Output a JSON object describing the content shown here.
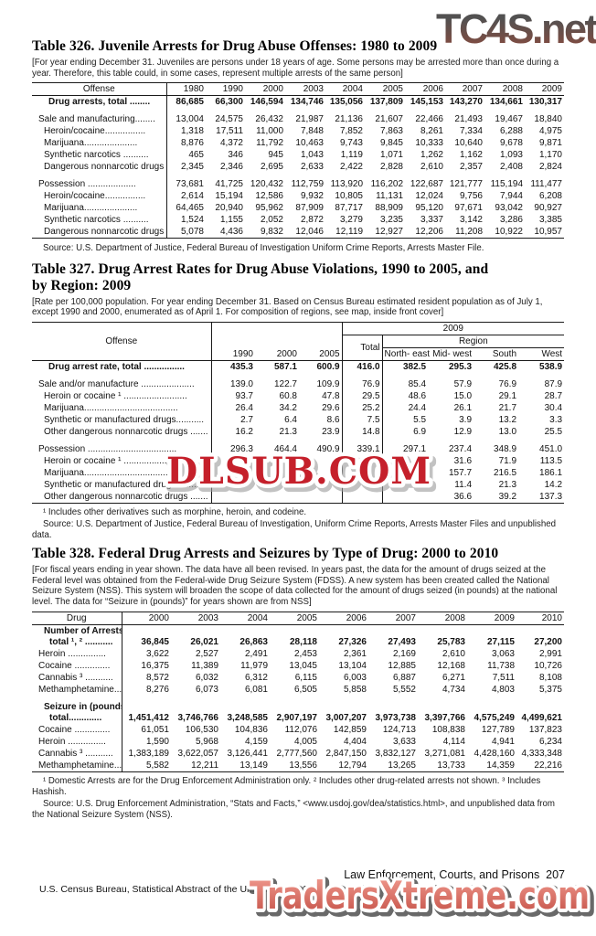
{
  "watermarks": {
    "top_right": "TC4S.net",
    "middle": "DLSUB.COM",
    "bottom": "TradersXtreme.com",
    "colors": {
      "middle_red": "#c5202b",
      "bottom_salmon_top": "#ec9388",
      "bottom_salmon_bottom": "#c8564c",
      "top_gray": "#4d4c4c",
      "top_maroon": "#84473a"
    }
  },
  "footer": {
    "right": "Law Enforcement, Courts, and Prisons  207",
    "left": "U.S. Census Bureau, Statistical Abstract of the United States: 2012"
  },
  "table326": {
    "title": "Table 326. Juvenile Arrests for Drug Abuse Offenses: 1980 to 2009",
    "note": "[For year ending December 31. Juveniles are persons under 18 years of age. Some persons may be arrested more than once during a year. Therefore, this table could, in some cases, represent multiple arrests of the same person]",
    "col_header": "Offense",
    "years": [
      "1980",
      "1990",
      "2000",
      "2003",
      "2004",
      "2005",
      "2006",
      "2007",
      "2008",
      "2009"
    ],
    "rows": [
      {
        "label": "Drug arrests, total ........",
        "bold": true,
        "indent": 2,
        "values": [
          "86,685",
          "66,300",
          "146,594",
          "134,746",
          "135,056",
          "137,809",
          "145,153",
          "143,270",
          "134,661",
          "130,317"
        ]
      },
      {
        "label": "Sale and manufacturing........",
        "indent": 0,
        "gap_before": true,
        "values": [
          "13,004",
          "24,575",
          "26,432",
          "21,987",
          "21,136",
          "21,607",
          "22,466",
          "21,493",
          "19,467",
          "18,840"
        ]
      },
      {
        "label": "Heroin/cocaine................",
        "indent": 1,
        "values": [
          "1,318",
          "17,511",
          "11,000",
          "7,848",
          "7,852",
          "7,863",
          "8,261",
          "7,334",
          "6,288",
          "4,975"
        ]
      },
      {
        "label": "Marijuana.....................",
        "indent": 1,
        "values": [
          "8,876",
          "4,372",
          "11,792",
          "10,463",
          "9,743",
          "9,845",
          "10,333",
          "10,640",
          "9,678",
          "9,871"
        ]
      },
      {
        "label": "Synthetic narcotics ..........",
        "indent": 1,
        "values": [
          "465",
          "346",
          "945",
          "1,043",
          "1,119",
          "1,071",
          "1,262",
          "1,162",
          "1,093",
          "1,170"
        ]
      },
      {
        "label": "Dangerous nonnarcotic drugs .",
        "indent": 1,
        "values": [
          "2,345",
          "2,346",
          "2,695",
          "2,633",
          "2,422",
          "2,828",
          "2,610",
          "2,357",
          "2,408",
          "2,824"
        ]
      },
      {
        "label": "Possession ...................",
        "indent": 0,
        "gap_before": true,
        "values": [
          "73,681",
          "41,725",
          "120,432",
          "112,759",
          "113,920",
          "116,202",
          "122,687",
          "121,777",
          "115,194",
          "111,477"
        ]
      },
      {
        "label": "Heroin/cocaine................",
        "indent": 1,
        "values": [
          "2,614",
          "15,194",
          "12,586",
          "9,932",
          "10,805",
          "11,131",
          "12,024",
          "9,756",
          "7,944",
          "6,208"
        ]
      },
      {
        "label": "Marijuana.....................",
        "indent": 1,
        "values": [
          "64,465",
          "20,940",
          "95,962",
          "87,909",
          "87,717",
          "88,909",
          "95,120",
          "97,671",
          "93,042",
          "90,927"
        ]
      },
      {
        "label": "Synthetic narcotics ..........",
        "indent": 1,
        "values": [
          "1,524",
          "1,155",
          "2,052",
          "2,872",
          "3,279",
          "3,235",
          "3,337",
          "3,142",
          "3,286",
          "3,385"
        ]
      },
      {
        "label": "Dangerous nonnarcotic drugs .",
        "indent": 1,
        "values": [
          "5,078",
          "4,436",
          "9,832",
          "12,046",
          "12,119",
          "12,927",
          "12,206",
          "11,208",
          "10,922",
          "10,957"
        ]
      }
    ],
    "source": "Source: U.S. Department of Justice, Federal Bureau of Investigation Uniform Crime Reports, Arrests Master File."
  },
  "table327": {
    "title_line1": "Table 327. Drug Arrest Rates for Drug Abuse Violations, 1990 to 2005, and",
    "title_line2": "by Region: 2009",
    "note": "[Rate per 100,000 population. For year ending December 31. Based on Census Bureau estimated resident population as of July 1, except 1990 and 2000, enumerated as of April 1. For composition of regions, see map, inside front cover]",
    "col_header": "Offense",
    "header_2009": "2009",
    "header_region": "Region",
    "header_total": "Total",
    "years": [
      "1990",
      "2000",
      "2005"
    ],
    "regions": [
      "North-\neast",
      "Mid-\nwest",
      "South",
      "West"
    ],
    "rows": [
      {
        "label": "Drug arrest rate, total ................",
        "bold": true,
        "indent": 2,
        "values": [
          "435.3",
          "587.1",
          "600.9",
          "416.0",
          "382.5",
          "295.3",
          "425.8",
          "538.9"
        ]
      },
      {
        "label": "Sale and/or manufacture .....................",
        "indent": 0,
        "gap_before": true,
        "values": [
          "139.0",
          "122.7",
          "109.9",
          "76.9",
          "85.4",
          "57.9",
          "76.9",
          "87.9"
        ]
      },
      {
        "label": "Heroin or cocaine ¹ .........................",
        "indent": 1,
        "values": [
          "93.7",
          "60.8",
          "47.8",
          "29.5",
          "48.6",
          "15.0",
          "29.1",
          "28.7"
        ]
      },
      {
        "label": "Marijuana.....................................",
        "indent": 1,
        "values": [
          "26.4",
          "34.2",
          "29.6",
          "25.2",
          "24.4",
          "26.1",
          "21.7",
          "30.4"
        ]
      },
      {
        "label": "Synthetic or manufactured drugs...........",
        "indent": 1,
        "values": [
          "2.7",
          "6.4",
          "8.6",
          "7.5",
          "5.5",
          "3.9",
          "13.2",
          "3.3"
        ]
      },
      {
        "label": "Other dangerous nonnarcotic drugs .......",
        "indent": 1,
        "values": [
          "16.2",
          "21.3",
          "23.9",
          "14.8",
          "6.9",
          "12.9",
          "13.0",
          "25.5"
        ]
      },
      {
        "label": "Possession ...................................",
        "indent": 0,
        "gap_before": true,
        "values": [
          "296.3",
          "464.4",
          "490.9",
          "339.1",
          "297.1",
          "237.4",
          "348.9",
          "451.0"
        ]
      },
      {
        "label": "Heroin or cocaine ¹ .........................",
        "indent": 1,
        "values": [
          "",
          "",
          "",
          "",
          "",
          "31.6",
          "71.9",
          "113.5"
        ]
      },
      {
        "label": "Marijuana.....................................",
        "indent": 1,
        "values": [
          "",
          "",
          "",
          "",
          "",
          "157.7",
          "216.5",
          "186.1"
        ]
      },
      {
        "label": "Synthetic or manufactured drugs...........",
        "indent": 1,
        "values": [
          "",
          "",
          "",
          "",
          "",
          "11.4",
          "21.3",
          "14.2"
        ]
      },
      {
        "label": "Other dangerous nonnarcotic drugs .......",
        "indent": 1,
        "values": [
          "",
          "",
          "",
          "",
          "",
          "36.6",
          "39.2",
          "137.3"
        ]
      }
    ],
    "footnote": "¹ Includes other derivatives such as morphine, heroin, and codeine.",
    "source": "Source: U.S. Department of Justice, Federal Bureau of Investigation, Uniform Crime Reports, Arrests Master Files and unpublished data."
  },
  "table328": {
    "title": "Table 328. Federal Drug Arrests and Seizures by Type of Drug: 2000 to 2010",
    "note": "[For fiscal years ending in year shown. The data have all been revised. In years past, the data for the amount of drugs seized at the Federal level was obtained from the Federal-wide Drug Seizure System (FDSS). A new system has been created called the National Seizure System (NSS). This system will broaden the scope of data collected for the amount of drugs seized (in pounds) at the national level.  The data for “Seizure in (pounds)” for years shown are from NSS]",
    "col_header": "Drug",
    "years": [
      "2000",
      "2003",
      "2004",
      "2005",
      "2006",
      "2007",
      "2008",
      "2009",
      "2010"
    ],
    "rows": [
      {
        "label_lines": [
          "Number of Arrests,",
          "total ¹, ² ..........."
        ],
        "bold": true,
        "indent": 1,
        "values": [
          "36,845",
          "26,021",
          "26,863",
          "28,118",
          "27,326",
          "27,493",
          "25,783",
          "27,115",
          "27,200"
        ]
      },
      {
        "label": "Heroin ...............",
        "indent": 0,
        "values": [
          "3,622",
          "2,527",
          "2,491",
          "2,453",
          "2,361",
          "2,169",
          "2,610",
          "3,063",
          "2,991"
        ]
      },
      {
        "label": "Cocaine ..............",
        "indent": 0,
        "values": [
          "16,375",
          "11,389",
          "11,979",
          "13,045",
          "13,104",
          "12,885",
          "12,168",
          "11,738",
          "10,726"
        ]
      },
      {
        "label": "Cannabis ³ ...........",
        "indent": 0,
        "values": [
          "8,572",
          "6,032",
          "6,312",
          "6,115",
          "6,003",
          "6,887",
          "6,271",
          "7,511",
          "8,108"
        ]
      },
      {
        "label": "Methamphetamine......",
        "indent": 0,
        "values": [
          "8,276",
          "6,073",
          "6,081",
          "6,505",
          "5,858",
          "5,552",
          "4,734",
          "4,803",
          "5,375"
        ]
      },
      {
        "label_lines": [
          "Seizure in (pounds),",
          "total............."
        ],
        "bold": true,
        "indent": 1,
        "gap_before": true,
        "values": [
          "1,451,412",
          "3,746,766",
          "3,248,585",
          "2,907,197",
          "3,007,207",
          "3,973,738",
          "3,397,766",
          "4,575,249",
          "4,499,621"
        ]
      },
      {
        "label": "Cocaine ..............",
        "indent": 0,
        "values": [
          "61,051",
          "106,530",
          "104,836",
          "112,076",
          "142,859",
          "124,713",
          "108,838",
          "127,789",
          "137,823"
        ]
      },
      {
        "label": "Heroin ...............",
        "indent": 0,
        "values": [
          "1,590",
          "5,968",
          "4,159",
          "4,005",
          "4,404",
          "3,633",
          "4,114",
          "4,941",
          "6,234"
        ]
      },
      {
        "label": "Cannabis ³ ...........",
        "indent": 0,
        "values": [
          "1,383,189",
          "3,622,057",
          "3,126,441",
          "2,777,560",
          "2,847,150",
          "3,832,127",
          "3,271,081",
          "4,428,160",
          "4,333,348"
        ]
      },
      {
        "label": "Methamphetamine......",
        "indent": 0,
        "values": [
          "5,582",
          "12,211",
          "13,149",
          "13,556",
          "12,794",
          "13,265",
          "13,733",
          "14,359",
          "22,216"
        ]
      }
    ],
    "footnotes": "¹ Domestic Arrests are for the Drug Enforcement Administration only. ² Includes other drug-related arrests not shown. ³ Includes Hashish.",
    "source": "Source: U.S. Drug Enforcement Administration, “Stats and Facts,” <www.usdoj.gov/dea/statistics.html>, and unpublished data from the National Seizure System (NSS)."
  }
}
